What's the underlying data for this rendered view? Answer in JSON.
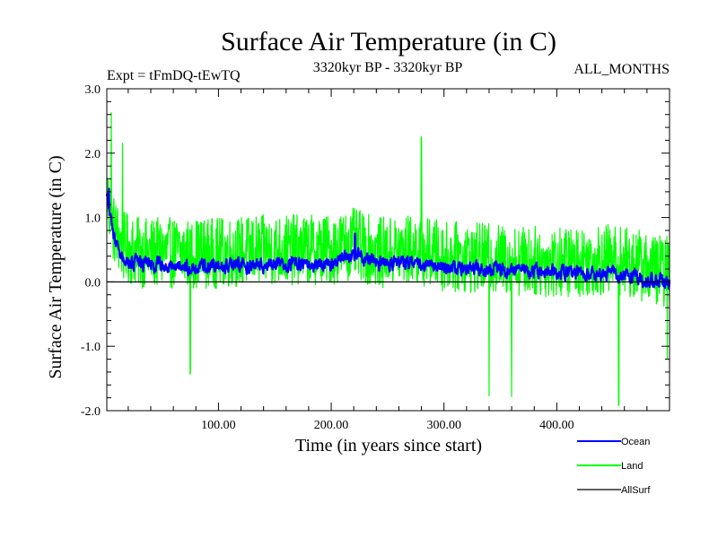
{
  "chart_data": {
    "type": "line",
    "title": "Surface Air Temperature (in C)",
    "subtitle_left": "Expt = tFmDQ-tEwTQ",
    "subtitle_center": "3320kyr BP - 3320kyr BP",
    "subtitle_right": "ALL_MONTHS",
    "xlabel": "Time (in years since start)",
    "ylabel": "Surface Air Temperature (in C)",
    "xlim": [
      1,
      500
    ],
    "ylim": [
      -2.0,
      3.0
    ],
    "x_ticks": [
      100,
      200,
      300,
      400
    ],
    "x_tick_labels": [
      "100.00",
      "200.00",
      "300.00",
      "400.00"
    ],
    "y_ticks": [
      -2.0,
      -1.0,
      0.0,
      1.0,
      2.0,
      3.0
    ],
    "y_tick_labels": [
      "-2.0",
      "-1.0",
      "0.0",
      "1.0",
      "2.0",
      "3.0"
    ],
    "zero_line": 0.0,
    "legend_position": "bottom-right",
    "series": [
      {
        "name": "Land",
        "color": "#00ff00",
        "x_start": 1,
        "x_end": 500,
        "baseline_knots_x": [
          1,
          5,
          15,
          30,
          60,
          100,
          150,
          200,
          220,
          240,
          275,
          300,
          350,
          400,
          450,
          500
        ],
        "baseline_knots_y": [
          1.4,
          0.9,
          0.55,
          0.45,
          0.45,
          0.45,
          0.5,
          0.5,
          0.6,
          0.45,
          0.5,
          0.4,
          0.35,
          0.3,
          0.35,
          0.15
        ],
        "noise_amplitude": 0.55,
        "peaks": [
          [
            5,
            2.63
          ],
          [
            15,
            2.15
          ],
          [
            280,
            2.25
          ],
          [
            75,
            -1.43
          ],
          [
            340,
            -1.77
          ],
          [
            360,
            -1.78
          ],
          [
            455,
            -1.92
          ],
          [
            498,
            -1.2
          ]
        ]
      },
      {
        "name": "Ocean",
        "color": "#0000ff",
        "x_start": 1,
        "x_end": 500,
        "baseline_knots_x": [
          1,
          5,
          15,
          30,
          60,
          100,
          150,
          200,
          220,
          240,
          275,
          300,
          350,
          400,
          450,
          500
        ],
        "baseline_knots_y": [
          1.4,
          0.85,
          0.35,
          0.28,
          0.25,
          0.25,
          0.27,
          0.26,
          0.45,
          0.3,
          0.3,
          0.22,
          0.2,
          0.15,
          0.12,
          0.0
        ],
        "noise_amplitude": 0.16,
        "peaks": [
          [
            3,
            1.45
          ],
          [
            221,
            0.75
          ]
        ]
      },
      {
        "name": "AllSurf",
        "color": "#000000",
        "x_start": 1,
        "x_end": 500,
        "baseline_knots_x": [
          1,
          500
        ],
        "baseline_knots_y": [
          0.0,
          0.0
        ],
        "noise_amplitude": 0.0,
        "peaks": []
      }
    ]
  }
}
